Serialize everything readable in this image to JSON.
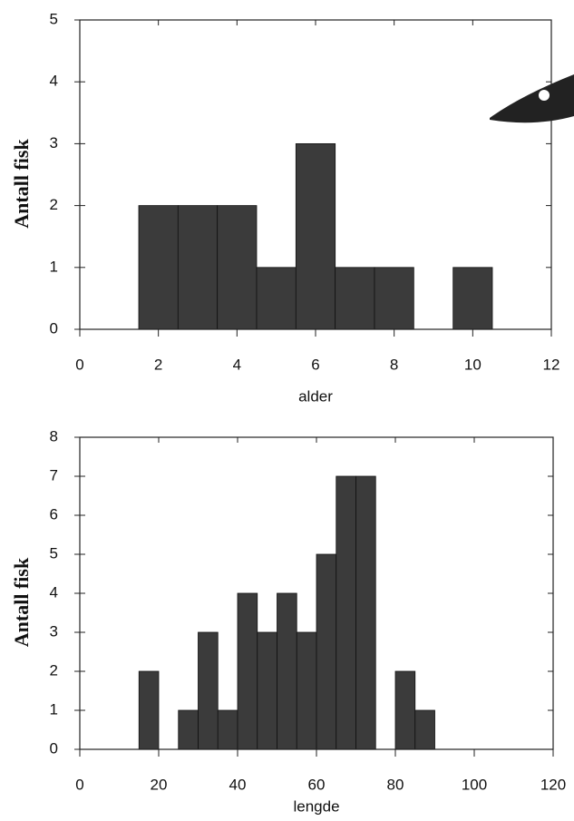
{
  "chart_data": [
    {
      "type": "histogram",
      "xlabel": "alder",
      "ylabel": "Antall fisk",
      "bins": [
        1.5,
        2.5,
        3.5,
        4.5,
        5.5,
        6.5,
        7.5,
        8.5,
        9.5,
        10.5
      ],
      "values": [
        2,
        2,
        2,
        1,
        3,
        1,
        1,
        0,
        1
      ],
      "color": "#3b3b3b",
      "xlim": [
        0,
        12
      ],
      "xticks": [
        0,
        2,
        4,
        6,
        8,
        10,
        12
      ],
      "ylim": [
        0,
        5
      ],
      "yticks": [
        0,
        1,
        2,
        3,
        4,
        5
      ]
    },
    {
      "type": "histogram",
      "xlabel": "lengde",
      "ylabel": "Antall fisk",
      "bins": [
        15,
        20,
        25,
        30,
        35,
        40,
        45,
        50,
        55,
        60,
        65,
        70,
        75,
        80,
        85,
        90
      ],
      "values": [
        2,
        0,
        1,
        3,
        1,
        4,
        3,
        4,
        3,
        5,
        7,
        7,
        0,
        2,
        1
      ],
      "color": "#3b3b3b",
      "xlim": [
        0,
        120
      ],
      "xticks": [
        0,
        20,
        40,
        60,
        80,
        100,
        120
      ],
      "ylim": [
        0,
        8
      ],
      "yticks": [
        0,
        1,
        2,
        3,
        4,
        5,
        6,
        7,
        8
      ]
    }
  ]
}
